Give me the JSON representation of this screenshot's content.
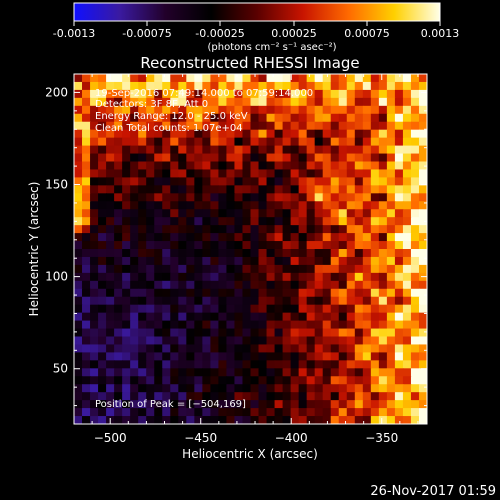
{
  "colorbar": {
    "tick_labels": [
      "-0.0013",
      "-0.00075",
      "-0.00025",
      "0.00025",
      "0.00075",
      "0.0013"
    ],
    "units": "(photons cm⁻² s⁻¹ asec⁻²)",
    "colors": [
      "#1010ff",
      "#3a1aa0",
      "#22002a",
      "#000000",
      "#5a0000",
      "#c81400",
      "#ff6a00",
      "#ffd000",
      "#ffffe8"
    ]
  },
  "chart_data": {
    "type": "heatmap",
    "title": "Reconstructed RHESSI Image",
    "xlabel": "Heliocentric X (arcsec)",
    "ylabel": "Heliocentric Y (arcsec)",
    "xlim": [
      -520,
      -325
    ],
    "ylim": [
      20,
      210
    ],
    "x_ticks": [
      -500,
      -450,
      -400,
      -350
    ],
    "y_ticks": [
      50,
      100,
      150,
      200
    ],
    "x_tick_labels": [
      "−500",
      "−450",
      "−400",
      "−350"
    ],
    "y_tick_labels": [
      "50",
      "100",
      "150",
      "200"
    ],
    "value_range": [
      -0.0013,
      0.0013
    ],
    "annotations": [
      "19-Sep-2016 07:49:14.000 to 07:59:14.000",
      "Detectors: 3F 8F, Att 0",
      "Energy Range: 12.0 - 25.0 keV",
      "Clean    Total counts: 1.07e+04"
    ],
    "peak_label": "Position of Peak = [−504,169]"
  },
  "timestamp": "26-Nov-2017 01:59"
}
